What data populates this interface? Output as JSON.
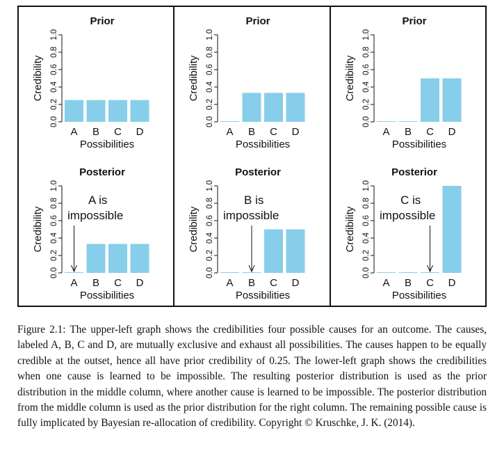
{
  "chart_data": [
    {
      "type": "bar",
      "title": "Prior",
      "categories": [
        "A",
        "B",
        "C",
        "D"
      ],
      "values": [
        0.25,
        0.25,
        0.25,
        0.25
      ],
      "xlabel": "Possibilities",
      "ylabel": "Credibility",
      "ylim": [
        0,
        1
      ],
      "yticks": [
        "0.0",
        "0.2",
        "0.4",
        "0.6",
        "0.8",
        "1.0"
      ],
      "color": "#87ceeb",
      "grid": false
    },
    {
      "type": "bar",
      "title": "Prior",
      "categories": [
        "A",
        "B",
        "C",
        "D"
      ],
      "values": [
        0,
        0.333,
        0.333,
        0.333
      ],
      "xlabel": "Possibilities",
      "ylabel": "Credibility",
      "ylim": [
        0,
        1
      ],
      "yticks": [
        "0.0",
        "0.2",
        "0.4",
        "0.6",
        "0.8",
        "1.0"
      ],
      "color": "#87ceeb",
      "grid": false
    },
    {
      "type": "bar",
      "title": "Prior",
      "categories": [
        "A",
        "B",
        "C",
        "D"
      ],
      "values": [
        0,
        0,
        0.5,
        0.5
      ],
      "xlabel": "Possibilities",
      "ylabel": "Credibility",
      "ylim": [
        0,
        1
      ],
      "yticks": [
        "0.0",
        "0.2",
        "0.4",
        "0.6",
        "0.8",
        "1.0"
      ],
      "color": "#87ceeb",
      "grid": false
    },
    {
      "type": "bar",
      "title": "Posterior",
      "categories": [
        "A",
        "B",
        "C",
        "D"
      ],
      "values": [
        0,
        0.333,
        0.333,
        0.333
      ],
      "xlabel": "Possibilities",
      "ylabel": "Credibility",
      "ylim": [
        0,
        1
      ],
      "yticks": [
        "0.0",
        "0.2",
        "0.4",
        "0.6",
        "0.8",
        "1.0"
      ],
      "color": "#87ceeb",
      "grid": false,
      "annotation": {
        "lines": [
          "A is",
          "impossible"
        ],
        "arrow_to": "A"
      }
    },
    {
      "type": "bar",
      "title": "Posterior",
      "categories": [
        "A",
        "B",
        "C",
        "D"
      ],
      "values": [
        0,
        0,
        0.5,
        0.5
      ],
      "xlabel": "Possibilities",
      "ylabel": "Credibility",
      "ylim": [
        0,
        1
      ],
      "yticks": [
        "0.0",
        "0.2",
        "0.4",
        "0.6",
        "0.8",
        "1.0"
      ],
      "color": "#87ceeb",
      "grid": false,
      "annotation": {
        "lines": [
          "B is",
          "impossible"
        ],
        "arrow_to": "B"
      }
    },
    {
      "type": "bar",
      "title": "Posterior",
      "categories": [
        "A",
        "B",
        "C",
        "D"
      ],
      "values": [
        0,
        0,
        0,
        1.0
      ],
      "xlabel": "Possibilities",
      "ylabel": "Credibility",
      "ylim": [
        0,
        1
      ],
      "yticks": [
        "0.0",
        "0.2",
        "0.4",
        "0.6",
        "0.8",
        "1.0"
      ],
      "color": "#87ceeb",
      "grid": false,
      "annotation": {
        "lines": [
          "C is",
          "impossible"
        ],
        "arrow_to": "C"
      }
    }
  ],
  "caption": "Figure 2.1: The upper-left graph shows the credibilities four possible causes for an outcome. The causes, labeled A, B, C and D, are mutually exclusive and exhaust all possibilities. The causes happen to be equally credible at the outset, hence all have prior credibility of 0.25. The lower-left graph shows the credibilities when one cause is learned to be impossible. The resulting posterior distribution is used as the prior distribution in the middle column, where another cause is learned to be impossible. The posterior distribution from the middle column is used as the prior distribution for the right column. The remaining possible cause is fully implicated by Bayesian re-allocation of credibility. Copyright © Kruschke, J. K. (2014)."
}
